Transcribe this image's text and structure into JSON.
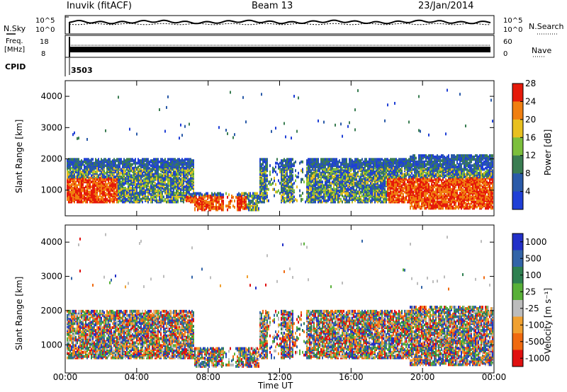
{
  "header": {
    "site_label": "Inuvik (fitACF)",
    "beam_label": "Beam 13",
    "date_label": "23/Jan/2014"
  },
  "noise_panel": {
    "left_label": "N.Sky",
    "right_label": "N.Search",
    "left_ticks": [
      "10^5",
      "10^0"
    ],
    "right_ticks": [
      "10^5",
      "10^0"
    ]
  },
  "freq_panel": {
    "left_label_line1": "Freq.",
    "left_label_line2": "[MHz]",
    "right_label": "Nave",
    "left_ticks": [
      "18",
      "8"
    ],
    "right_ticks": [
      "60",
      "0"
    ]
  },
  "cpid": {
    "label": "CPID",
    "value": "3503"
  },
  "chart_data": [
    {
      "type": "heatmap",
      "name": "power",
      "ylabel": "Slant Range [km]",
      "ylim": [
        180,
        4500
      ],
      "yticks": [
        "1000",
        "2000",
        "3000",
        "4000"
      ],
      "x_ticks": [
        "00:00",
        "04:00",
        "08:00",
        "12:00",
        "16:00",
        "20:00",
        "00:00"
      ],
      "colorbar": {
        "label": "Power [dB]",
        "ticks": [
          "4",
          "8",
          "12",
          "16",
          "20",
          "24",
          "28"
        ],
        "colors": [
          "#1f3fd6",
          "#2a5aa8",
          "#3a7d52",
          "#7cbf3c",
          "#e8c020",
          "#f07f10",
          "#e51a0a"
        ]
      }
    },
    {
      "type": "heatmap",
      "name": "velocity",
      "ylabel": "Slant Range [km]",
      "ylim": [
        180,
        4500
      ],
      "yticks": [
        "1000",
        "2000",
        "3000",
        "4000"
      ],
      "x_ticks": [
        "00:00",
        "04:00",
        "08:00",
        "12:00",
        "16:00",
        "20:00",
        "00:00"
      ],
      "xlabel": "Time UT",
      "colorbar": {
        "label": "Velocity [m s⁻¹]",
        "ticks": [
          "1000",
          "500",
          "100",
          "25",
          "-25",
          "-100",
          "-500",
          "-1000"
        ],
        "colors": [
          "#2230c8",
          "#3264a8",
          "#2e8050",
          "#58b038",
          "#bcbcbc",
          "#f0a030",
          "#f06a10",
          "#e01010"
        ]
      }
    }
  ]
}
